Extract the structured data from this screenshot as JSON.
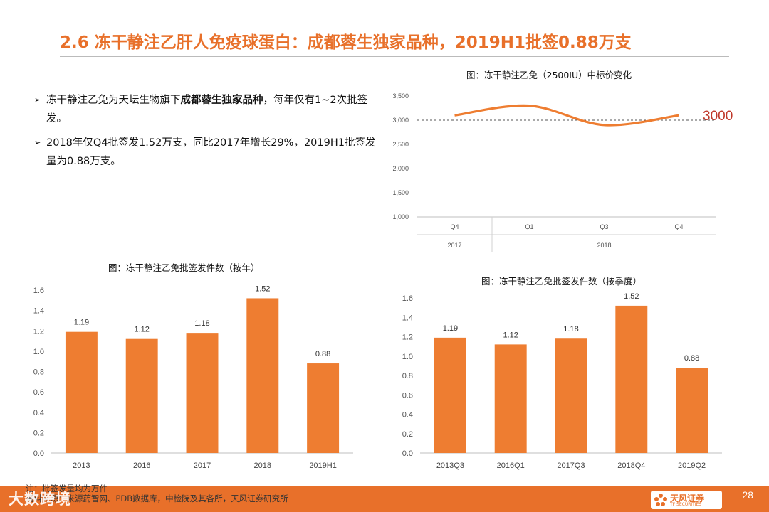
{
  "title": "2.6 冻干静注乙肝人免疫球蛋白：成都蓉生独家品种，2019H1批签0.88万支",
  "bullets": [
    {
      "pre": "冻干静注乙免为天坛生物旗下",
      "bold": "成都蓉生独家品种",
      "post": "，每年仅有1~2次批签发。"
    },
    {
      "pre": "2018年仅Q4批签发1.52万支，同比2017年增长29%，2019H1批签发量为0.88万支。",
      "bold": "",
      "post": ""
    }
  ],
  "page_number": "28",
  "notes": {
    "line1": "注：批签发量均为万件",
    "line2": "资料来源：来源药智网、PDB数据库，中检院及其各所，天风证券研究所"
  },
  "watermark": "大数跨境",
  "logo": {
    "name": "天风证券",
    "sub": "TF SECURITIES"
  },
  "colors": {
    "accent": "#e8702a",
    "bar": "#ee7d31",
    "line": "#ee7d31",
    "reference": "#c0392b"
  },
  "chart_data": [
    {
      "type": "line",
      "title": "图：冻干静注乙免（2500IU）中标价变化",
      "x": [
        "Q4",
        "Q1",
        "Q3",
        "Q4"
      ],
      "x_groups": [
        {
          "label": "2017",
          "span": 1
        },
        {
          "label": "2018",
          "span": 3
        }
      ],
      "values": [
        3100,
        3300,
        2900,
        3100
      ],
      "yticks": [
        "1,000",
        "1,500",
        "2,000",
        "2,500",
        "3,000",
        "3,500"
      ],
      "ylim": [
        1000,
        3500
      ],
      "reference_line": {
        "value": 3000,
        "label": "3000"
      }
    },
    {
      "type": "bar",
      "title": "图：冻干静注乙免批签发件数（按年）",
      "categories": [
        "2013",
        "2016",
        "2017",
        "2018",
        "2019H1"
      ],
      "values": [
        1.19,
        1.12,
        1.18,
        1.52,
        0.88
      ],
      "labels": [
        "1.19",
        "1.12",
        "1.18",
        "1.52",
        "0.88"
      ],
      "yticks": [
        "0.0",
        "0.2",
        "0.4",
        "0.6",
        "0.8",
        "1.0",
        "1.2",
        "1.4",
        "1.6"
      ],
      "ylim": [
        0,
        1.6
      ]
    },
    {
      "type": "bar",
      "title": "图：冻干静注乙免批签发件数（按季度）",
      "categories": [
        "2013Q3",
        "2016Q1",
        "2017Q3",
        "2018Q4",
        "2019Q2"
      ],
      "values": [
        1.19,
        1.12,
        1.18,
        1.52,
        0.88
      ],
      "labels": [
        "1.19",
        "1.12",
        "1.18",
        "1.52",
        "0.88"
      ],
      "yticks": [
        "0.0",
        "0.2",
        "0.4",
        "0.6",
        "0.8",
        "1.0",
        "1.2",
        "1.4",
        "1.6"
      ],
      "ylim": [
        0,
        1.6
      ]
    }
  ]
}
